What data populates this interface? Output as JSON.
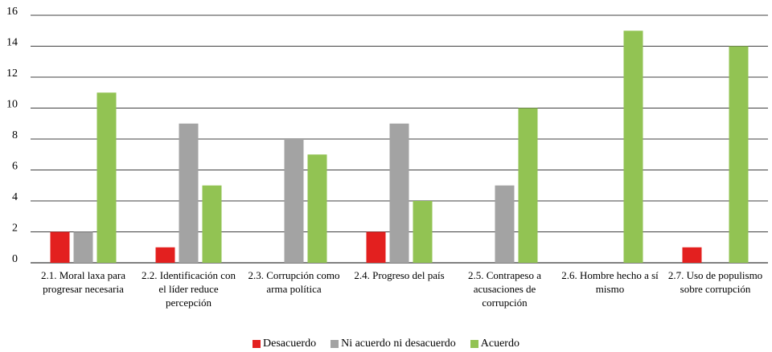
{
  "chart_data": {
    "type": "bar",
    "categories": [
      "2.1. Moral laxa para progresar necesaria",
      "2.2. Identificación con el líder reduce percepción",
      "2.3. Corrupción como arma política",
      "2.4. Progreso del país",
      "2.5. Contrapeso a acusaciones de corrupción",
      "2.6. Hombre hecho a sí mismo",
      "2.7. Uso de populismo sobre corrupción"
    ],
    "series": [
      {
        "name": "Desacuerdo",
        "color": "#e3201f",
        "values": [
          2,
          1,
          0,
          2,
          0,
          0,
          1
        ]
      },
      {
        "name": "Ni acuerdo ni desacuerdo",
        "color": "#a3a3a3",
        "values": [
          2,
          9,
          8,
          9,
          5,
          0,
          0
        ]
      },
      {
        "name": "Acuerdo",
        "color": "#92c353",
        "values": [
          11,
          5,
          7,
          4,
          10,
          15,
          14
        ]
      }
    ],
    "ylim": [
      0,
      16
    ],
    "yticks": [
      0,
      2,
      4,
      6,
      8,
      10,
      12,
      14,
      16
    ],
    "grid": true,
    "legend": "bottom"
  }
}
